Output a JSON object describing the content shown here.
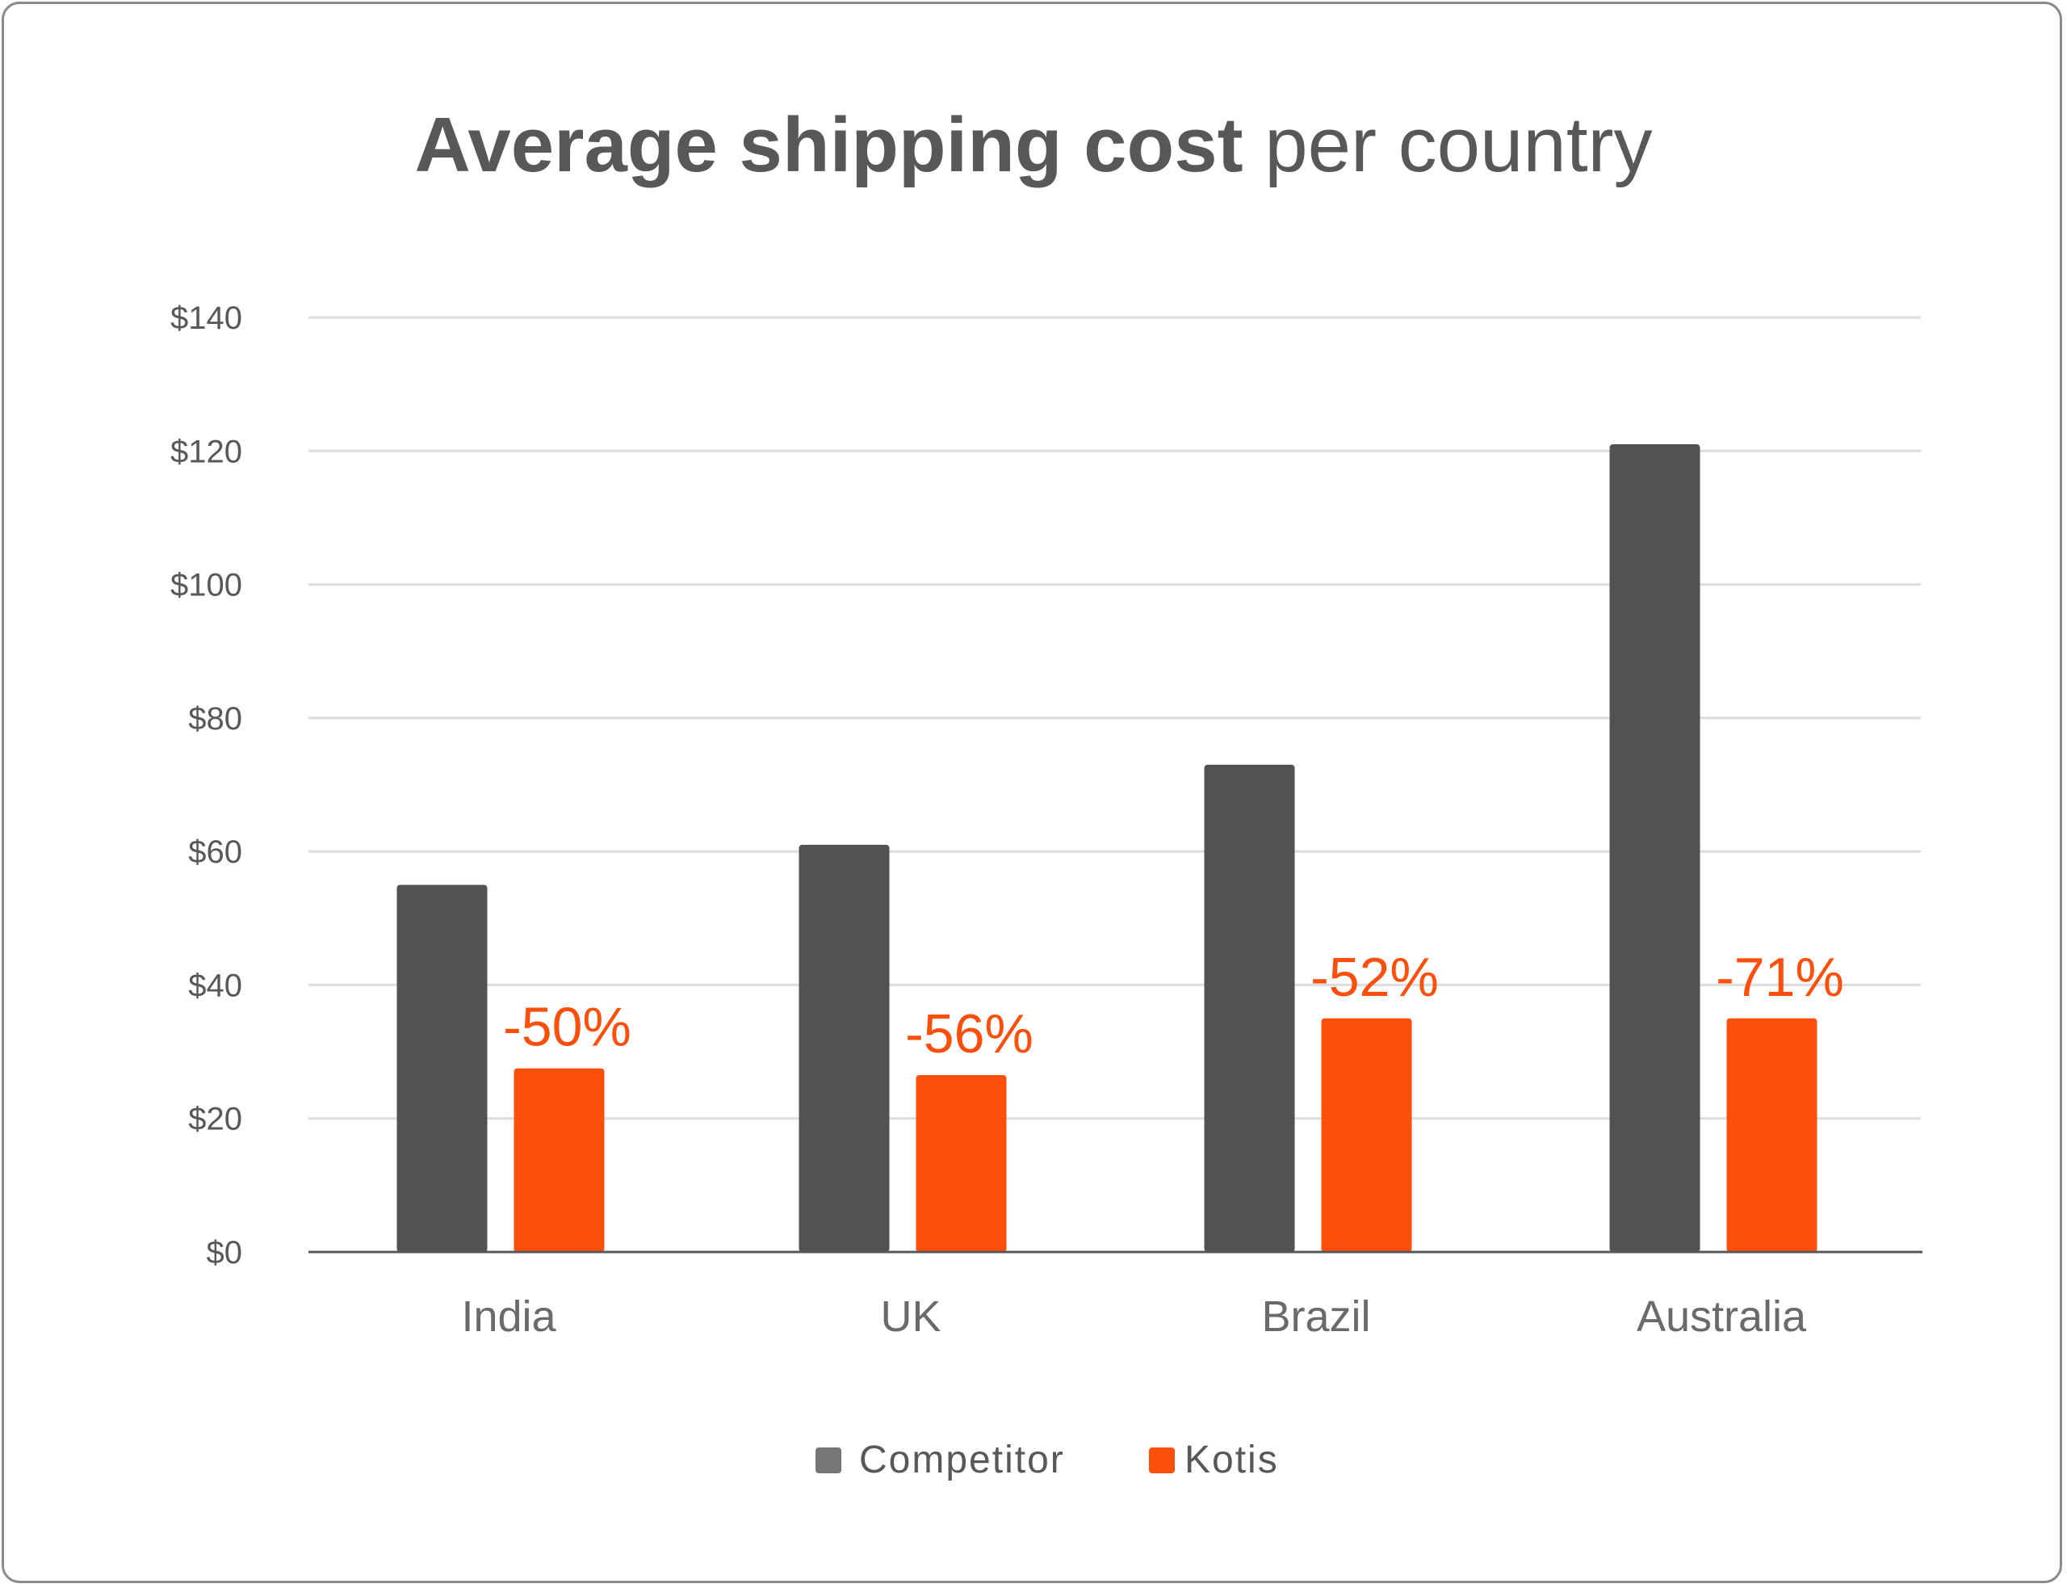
{
  "chart_data": {
    "type": "bar",
    "title_bold": "Average shipping cost",
    "title_regular": "per country",
    "xlabel": "",
    "ylabel": "",
    "ylim": [
      0,
      140
    ],
    "yticks": [
      0,
      20,
      40,
      60,
      80,
      100,
      120,
      140
    ],
    "ytick_labels": [
      "$0",
      "$20",
      "$40",
      "$60",
      "$80",
      "$100",
      "$120",
      "$140"
    ],
    "grid": true,
    "legend_position": "bottom",
    "categories": [
      "India",
      "UK",
      "Brazil",
      "Australia"
    ],
    "series": [
      {
        "name": "Competitor",
        "color": "#515254",
        "legend_color": "#767676",
        "values": [
          55,
          61,
          73,
          121
        ]
      },
      {
        "name": "Kotis",
        "color": "#fc4f0b",
        "values": [
          27.5,
          26.5,
          35,
          35
        ]
      }
    ],
    "annotations": [
      "-50%",
      "-56%",
      "-52%",
      "-71%"
    ],
    "annotation_color": "#fc4f0b"
  }
}
